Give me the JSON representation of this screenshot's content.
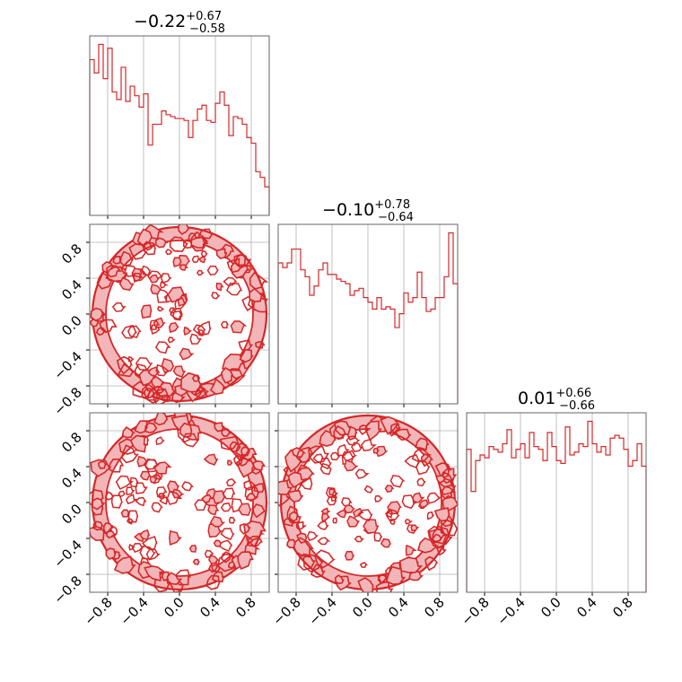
{
  "colors": {
    "accent": "#d62728",
    "fill_light": "#f2b6b8",
    "grid": "#b0b0b0",
    "frame": "#666666"
  },
  "tick_labels": [
    "−0.8",
    "−0.4",
    "0.0",
    "0.4",
    "0.8"
  ],
  "titles": [
    {
      "value": "−0.22",
      "upper": "+0.67",
      "lower": "−0.58"
    },
    {
      "value": "−0.10",
      "upper": "+0.78",
      "lower": "−0.64"
    },
    {
      "value": "0.01",
      "upper": "+0.66",
      "lower": "−0.66"
    }
  ],
  "chart_data": {
    "type": "corner",
    "parameters": 3,
    "x_range": [
      -1.0,
      1.0
    ],
    "ticks": [
      -0.8,
      -0.4,
      0.0,
      0.4,
      0.8
    ],
    "grid": true,
    "histograms": [
      {
        "param_index": 0,
        "type": "histogram",
        "bins": 40,
        "counts": [
          82,
          75,
          90,
          72,
          88,
          65,
          61,
          78,
          60,
          68,
          63,
          57,
          64,
          37,
          48,
          48,
          55,
          53,
          52,
          51,
          51,
          50,
          41,
          50,
          56,
          58,
          50,
          49,
          59,
          65,
          58,
          42,
          52,
          51,
          48,
          41,
          38,
          23,
          20,
          15
        ]
      },
      {
        "param_index": 1,
        "type": "histogram",
        "bins": 40,
        "counts": [
          61,
          59,
          61,
          67,
          67,
          58,
          55,
          47,
          51,
          58,
          61,
          56,
          56,
          54,
          53,
          52,
          47,
          49,
          50,
          46,
          44,
          41,
          46,
          41,
          42,
          41,
          33,
          39,
          48,
          44,
          46,
          57,
          46,
          40,
          41,
          46,
          46,
          55,
          74,
          52
        ]
      },
      {
        "param_index": 2,
        "type": "histogram",
        "bins": 40,
        "counts": [
          51,
          36,
          47,
          49,
          48,
          52,
          51,
          50,
          53,
          58,
          48,
          51,
          53,
          48,
          57,
          52,
          51,
          47,
          57,
          52,
          47,
          46,
          59,
          49,
          50,
          53,
          52,
          61,
          53,
          50,
          52,
          49,
          55,
          56,
          55,
          51,
          45,
          47,
          53,
          45
        ]
      }
    ],
    "contour_panels": [
      {
        "x_param": 0,
        "y_param": 1,
        "type": "2d-density-contour",
        "support": "unit disk",
        "y_range": [
          -1.0,
          1.0
        ]
      },
      {
        "x_param": 0,
        "y_param": 2,
        "type": "2d-density-contour",
        "support": "unit disk",
        "y_range": [
          -1.0,
          1.0
        ]
      },
      {
        "x_param": 1,
        "y_param": 2,
        "type": "2d-density-contour",
        "support": "unit disk",
        "y_range": [
          -1.0,
          1.0
        ]
      }
    ]
  }
}
